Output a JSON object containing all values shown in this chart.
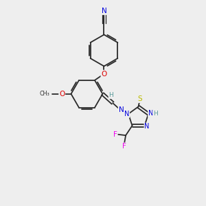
{
  "bg_color": "#eeeeee",
  "bond_color": "#2a2a2a",
  "atom_colors": {
    "N": "#0000dd",
    "O": "#dd0000",
    "S": "#bbbb00",
    "F": "#ee00ee",
    "C": "#2a2a2a",
    "H": "#559999"
  },
  "figsize": [
    3.0,
    3.0
  ],
  "dpi": 100,
  "xlim": [
    0,
    10
  ],
  "ylim": [
    0,
    10
  ]
}
